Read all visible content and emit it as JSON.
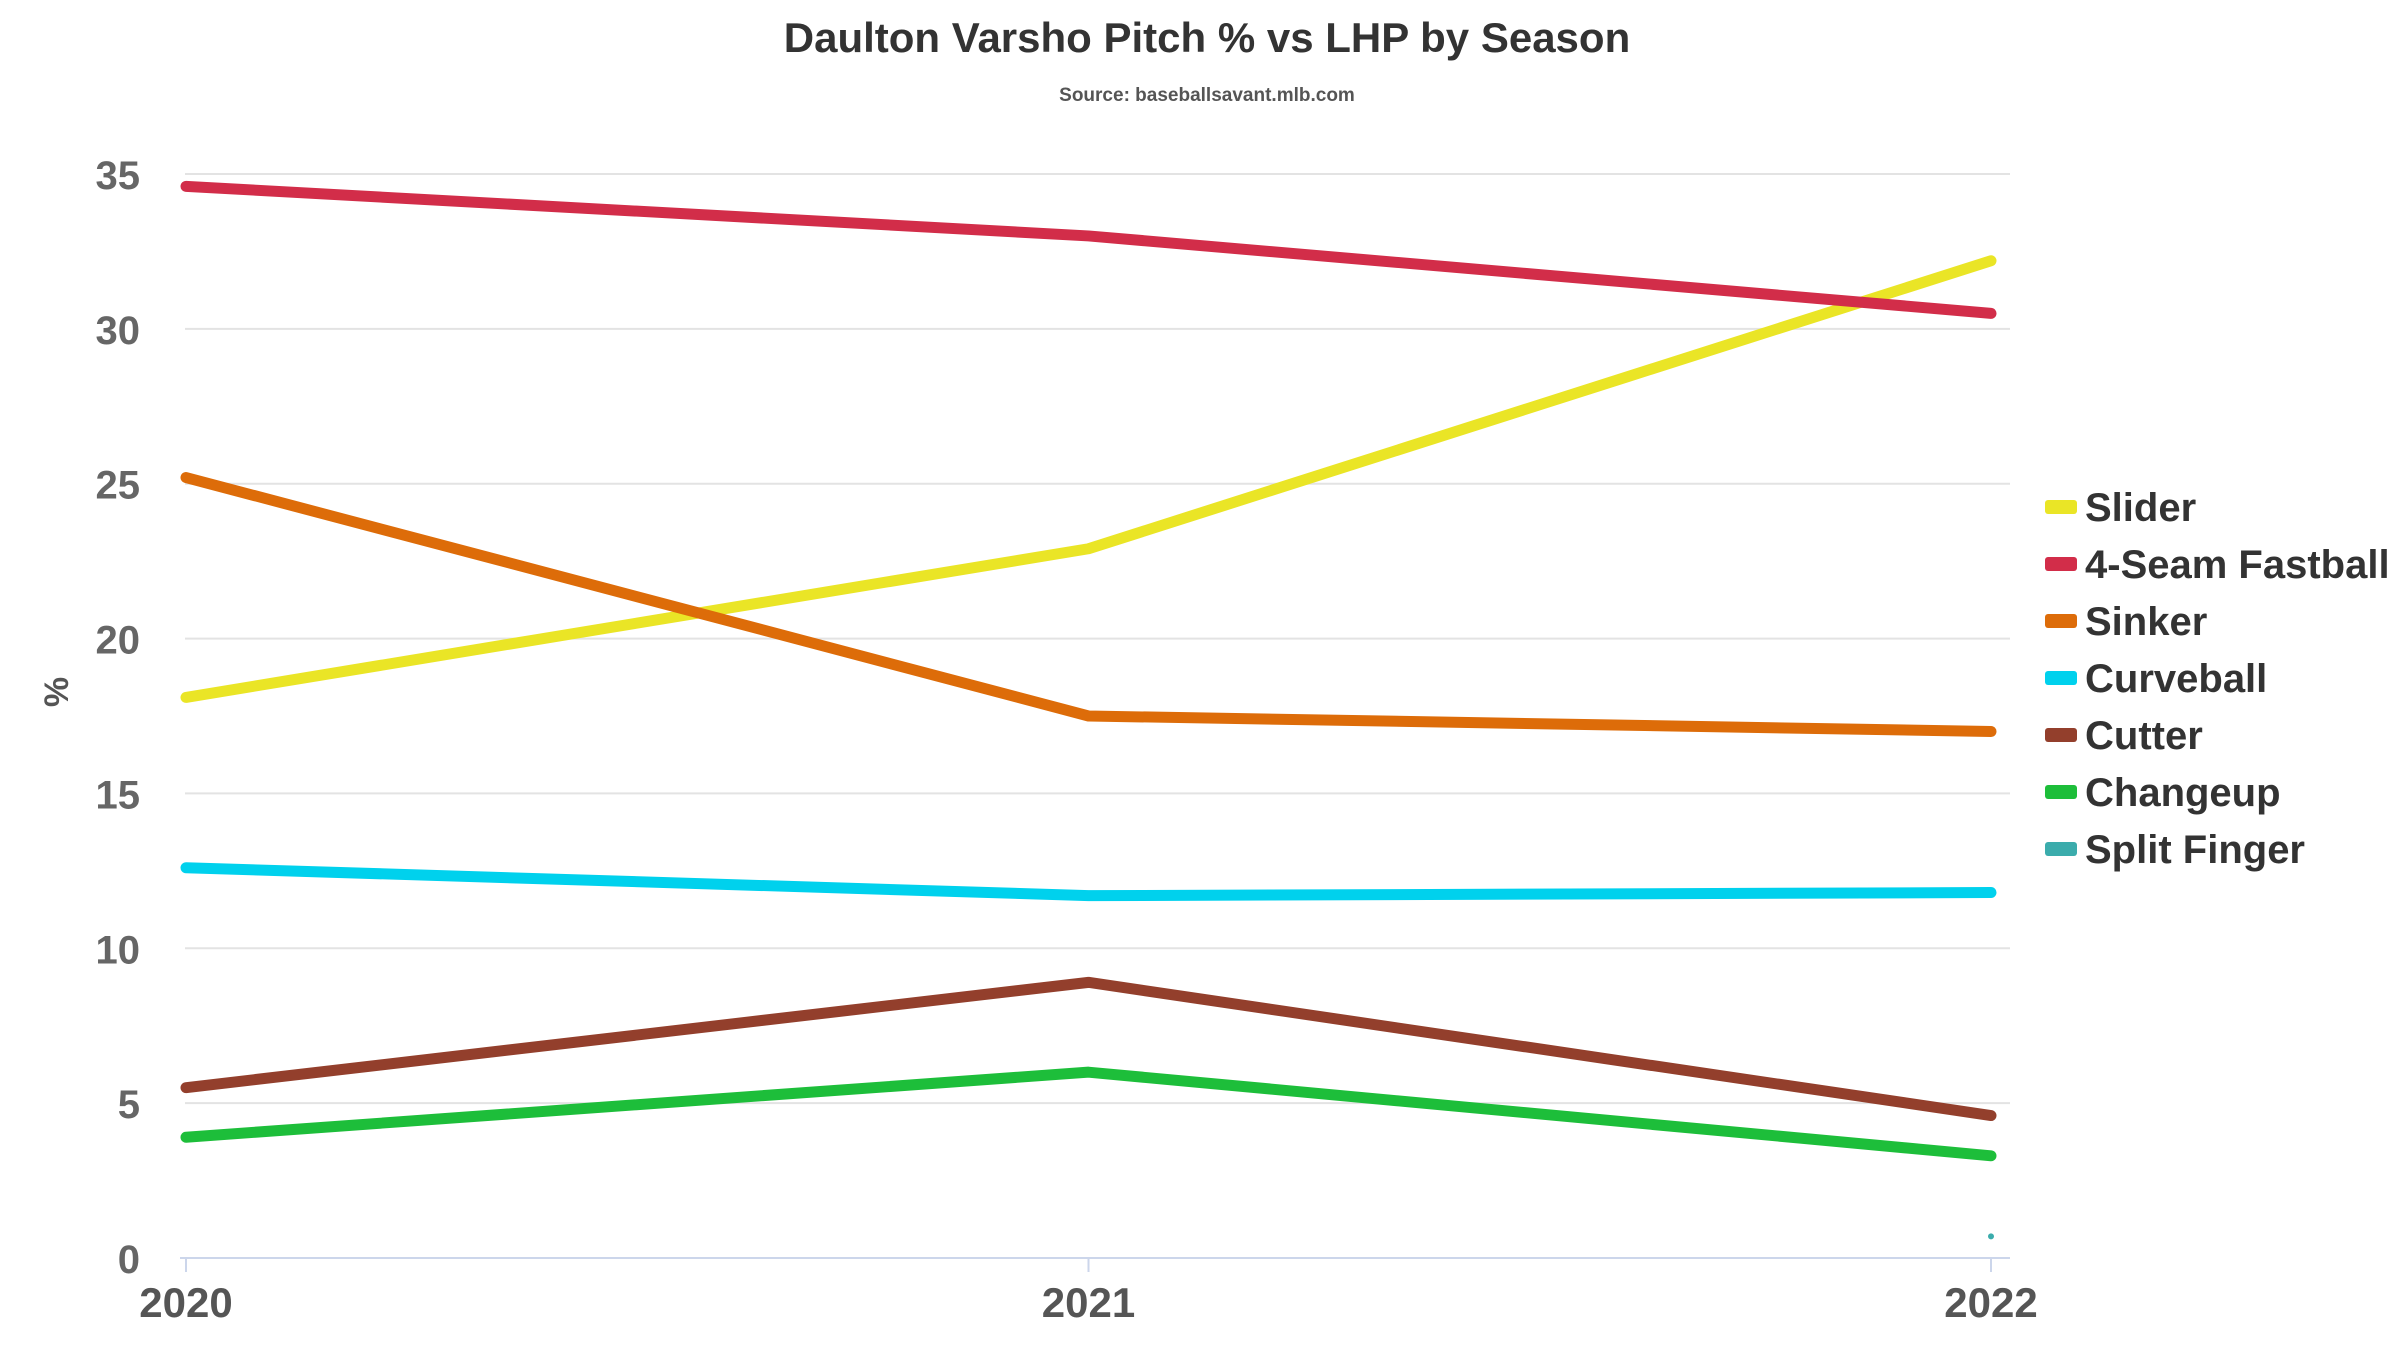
{
  "chart_data": {
    "type": "line",
    "title": "Daulton Varsho Pitch % vs LHP by Season",
    "subtitle": "Source: baseballsavant.mlb.com",
    "xlabel": "",
    "ylabel": "%",
    "categories": [
      "2020",
      "2021",
      "2022"
    ],
    "ylim": [
      0,
      35
    ],
    "yticks": [
      0,
      5,
      10,
      15,
      20,
      25,
      30,
      35
    ],
    "grid": true,
    "legend_position": "right",
    "series": [
      {
        "name": "Slider",
        "color": "#eae526",
        "values": [
          18.1,
          22.9,
          32.2
        ]
      },
      {
        "name": "4-Seam Fastball",
        "color": "#d22d49",
        "values": [
          34.6,
          33.0,
          30.5
        ]
      },
      {
        "name": "Sinker",
        "color": "#dd6c09",
        "values": [
          25.2,
          17.5,
          17.0
        ]
      },
      {
        "name": "Curveball",
        "color": "#00d1ed",
        "values": [
          12.6,
          11.7,
          11.8
        ]
      },
      {
        "name": "Cutter",
        "color": "#933f2c",
        "values": [
          5.5,
          8.9,
          4.6
        ]
      },
      {
        "name": "Changeup",
        "color": "#1dbe3a",
        "values": [
          3.9,
          6.0,
          3.3
        ]
      },
      {
        "name": "Split Finger",
        "color": "#3bacac",
        "values": [
          null,
          null,
          0.7
        ]
      }
    ]
  }
}
